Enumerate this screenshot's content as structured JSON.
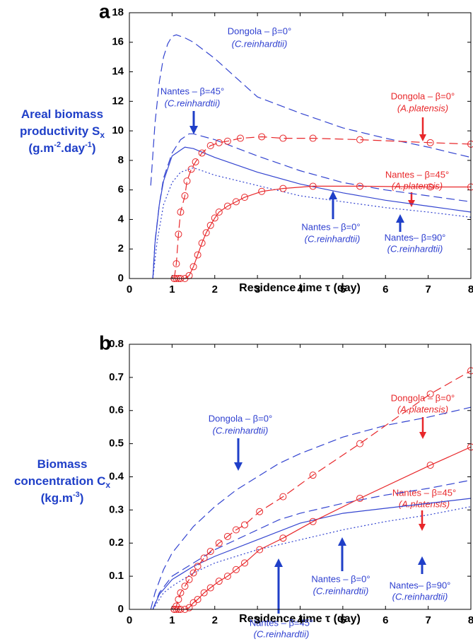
{
  "chart_data": [
    {
      "type": "line",
      "panel": "a",
      "xlabel": "Residence time τ (day)",
      "ylabel": [
        [
          "Areal biomass"
        ],
        [
          "productivity S",
          "x"
        ],
        [
          "(g.m",
          "-2",
          ".day",
          "-1",
          ")"
        ]
      ],
      "xlim": [
        0,
        8
      ],
      "xticks": [
        0,
        1,
        2,
        3,
        4,
        5,
        6,
        7,
        8
      ],
      "ylim": [
        0,
        18
      ],
      "yticks": [
        0,
        2,
        4,
        6,
        8,
        10,
        12,
        14,
        16,
        18
      ],
      "series": [
        {
          "color": "#3344d0",
          "dash": "dashed",
          "markers": false,
          "x": [
            0.5,
            0.6,
            0.7,
            0.8,
            0.9,
            1.0,
            1.1,
            1.3,
            1.5,
            2,
            3,
            4,
            5,
            6,
            7,
            8
          ],
          "values": [
            6.3,
            10.5,
            13.3,
            15.0,
            15.9,
            16.4,
            16.5,
            16.3,
            16.0,
            14.9,
            12.3,
            11.2,
            10.2,
            9.5,
            8.9,
            8.2
          ]
        },
        {
          "color": "#3344d0",
          "dash": "dashed",
          "markers": false,
          "x": [
            0.55,
            0.6,
            0.7,
            0.8,
            1.0,
            1.2,
            1.4,
            1.5,
            2,
            3,
            4,
            5,
            6,
            7,
            8
          ],
          "values": [
            0,
            2.5,
            5.0,
            6.8,
            8.5,
            9.4,
            9.8,
            9.8,
            9.4,
            8.3,
            7.3,
            6.5,
            6.0,
            5.6,
            5.2
          ]
        },
        {
          "color": "#3344d0",
          "dash": "solid",
          "markers": false,
          "x": [
            0.55,
            0.6,
            0.7,
            0.8,
            1.0,
            1.3,
            1.5,
            2,
            3,
            4,
            5,
            6,
            7,
            8
          ],
          "values": [
            0,
            2.4,
            5.0,
            6.6,
            8.3,
            8.9,
            8.8,
            8.2,
            7.2,
            6.4,
            5.8,
            5.3,
            4.9,
            4.5
          ]
        },
        {
          "color": "#3344d0",
          "dash": "dotted",
          "markers": false,
          "x": [
            0.55,
            0.65,
            0.8,
            1.0,
            1.2,
            1.5,
            2,
            3,
            4,
            5,
            6,
            7,
            8
          ],
          "values": [
            0,
            2.5,
            5.0,
            6.5,
            7.2,
            7.5,
            7.0,
            6.3,
            5.6,
            5.2,
            4.8,
            4.5,
            4.15
          ]
        },
        {
          "color": "#e8272a",
          "dash": "dashed",
          "markers": true,
          "x": [
            1.05,
            1.1,
            1.15,
            1.2,
            1.3,
            1.35,
            1.45,
            1.55,
            1.7,
            1.9,
            2.1,
            2.3,
            2.6,
            3.1,
            3.6,
            4.3,
            5.4,
            7.05,
            8
          ],
          "values": [
            0,
            1,
            3,
            4.5,
            5.6,
            6.6,
            7.4,
            7.9,
            8.5,
            9.0,
            9.2,
            9.3,
            9.5,
            9.6,
            9.5,
            9.5,
            9.4,
            9.2,
            9.1
          ]
        },
        {
          "color": "#e8272a",
          "dash": "solid",
          "markers": true,
          "x": [
            1.05,
            1.1,
            1.15,
            1.2,
            1.3,
            1.4,
            1.5,
            1.6,
            1.7,
            1.8,
            1.9,
            2.0,
            2.1,
            2.3,
            2.5,
            2.7,
            3.1,
            3.6,
            4.3,
            5.4,
            7.05,
            8
          ],
          "values": [
            0,
            0,
            0,
            0,
            0,
            0.2,
            0.8,
            1.6,
            2.4,
            3.1,
            3.6,
            4.1,
            4.5,
            4.9,
            5.2,
            5.5,
            5.9,
            6.1,
            6.25,
            6.25,
            6.2,
            6.2
          ]
        }
      ],
      "annotations": [
        {
          "text": "Dongola – β=0°",
          "sub": "(C.reinhardtii)"
        },
        {
          "text": "Nantes – β=45°",
          "sub": "(C.reinhardtii)"
        },
        {
          "text": "Dongola – β=0°",
          "sub": "(A.platensis)"
        },
        {
          "text": "Nantes – β=45°",
          "sub": "(A.platensis)"
        },
        {
          "text": "Nantes – β=0°",
          "sub": "(C.reinhardtii)"
        },
        {
          "text": "Nantes– β=90°",
          "sub": "(C.reinhardtii)"
        }
      ]
    },
    {
      "type": "line",
      "panel": "b",
      "xlabel": "Residence time τ (day)",
      "ylabel": [
        [
          "Biomass"
        ],
        [
          "concentration C",
          "x"
        ],
        [
          "(kg.m",
          "-3",
          ")"
        ]
      ],
      "xlim": [
        0,
        8
      ],
      "xticks": [
        0,
        1,
        2,
        3,
        4,
        5,
        6,
        7,
        8
      ],
      "ylim": [
        0,
        0.8
      ],
      "yticks": [
        0,
        0.1,
        0.2,
        0.3,
        0.4,
        0.5,
        0.6,
        0.7,
        0.8
      ],
      "series": [
        {
          "color": "#3344d0",
          "dash": "dashed",
          "markers": false,
          "x": [
            0.5,
            0.6,
            0.8,
            1,
            1.5,
            2,
            2.5,
            3,
            3.5,
            4,
            5,
            6,
            7,
            8
          ],
          "values": [
            0,
            0.05,
            0.12,
            0.17,
            0.25,
            0.31,
            0.36,
            0.4,
            0.44,
            0.47,
            0.52,
            0.555,
            0.58,
            0.61
          ]
        },
        {
          "color": "#3344d0",
          "dash": "dashed",
          "markers": false,
          "x": [
            0.55,
            0.7,
            1,
            1.5,
            2,
            3,
            3.5,
            4,
            5,
            6,
            7,
            8
          ],
          "values": [
            0,
            0.05,
            0.1,
            0.14,
            0.18,
            0.24,
            0.27,
            0.29,
            0.32,
            0.345,
            0.365,
            0.39
          ]
        },
        {
          "color": "#3344d0",
          "dash": "solid",
          "markers": false,
          "x": [
            0.55,
            0.7,
            1,
            1.5,
            2,
            3,
            4,
            5,
            6,
            7,
            8
          ],
          "values": [
            0,
            0.045,
            0.09,
            0.13,
            0.16,
            0.21,
            0.26,
            0.29,
            0.305,
            0.32,
            0.335
          ]
        },
        {
          "color": "#3344d0",
          "dash": "dotted",
          "markers": false,
          "x": [
            0.55,
            0.8,
            1,
            1.5,
            2,
            3,
            4,
            5,
            6,
            7,
            8
          ],
          "values": [
            0,
            0.05,
            0.07,
            0.11,
            0.14,
            0.18,
            0.21,
            0.24,
            0.265,
            0.285,
            0.31
          ]
        },
        {
          "color": "#e8272a",
          "dash": "dashed",
          "markers": true,
          "x": [
            1.05,
            1.1,
            1.15,
            1.2,
            1.3,
            1.4,
            1.5,
            1.6,
            1.75,
            1.9,
            2.1,
            2.3,
            2.5,
            2.7,
            3.05,
            3.6,
            4.3,
            5.4,
            7.05,
            8
          ],
          "values": [
            0,
            0.01,
            0.03,
            0.05,
            0.07,
            0.09,
            0.11,
            0.13,
            0.155,
            0.175,
            0.2,
            0.22,
            0.24,
            0.255,
            0.295,
            0.34,
            0.405,
            0.5,
            0.65,
            0.72
          ]
        },
        {
          "color": "#e8272a",
          "dash": "solid",
          "markers": true,
          "x": [
            1.05,
            1.1,
            1.15,
            1.2,
            1.3,
            1.4,
            1.5,
            1.6,
            1.75,
            1.9,
            2.1,
            2.3,
            2.5,
            2.7,
            3.05,
            3.6,
            4.3,
            5.4,
            7.05,
            8
          ],
          "values": [
            0,
            0,
            0,
            0,
            0,
            0.005,
            0.02,
            0.03,
            0.05,
            0.065,
            0.085,
            0.1,
            0.12,
            0.14,
            0.18,
            0.215,
            0.265,
            0.335,
            0.435,
            0.49
          ]
        }
      ],
      "annotations": [
        {
          "text": "Dongola – β=0°",
          "sub": "(A.platensis)"
        },
        {
          "text": "Dongola – β=0°",
          "sub": "(C.reinhardtii)"
        },
        {
          "text": "Nantes – β=45°",
          "sub": "(A.platensis)"
        },
        {
          "text": "Nantes – β=0°",
          "sub": "(C.reinhardtii)"
        },
        {
          "text": "Nantes– β=90°",
          "sub": "(C.reinhardtii)"
        },
        {
          "text": "Nantes – β=45°",
          "sub": "(C.reinhardtii)"
        }
      ]
    }
  ]
}
